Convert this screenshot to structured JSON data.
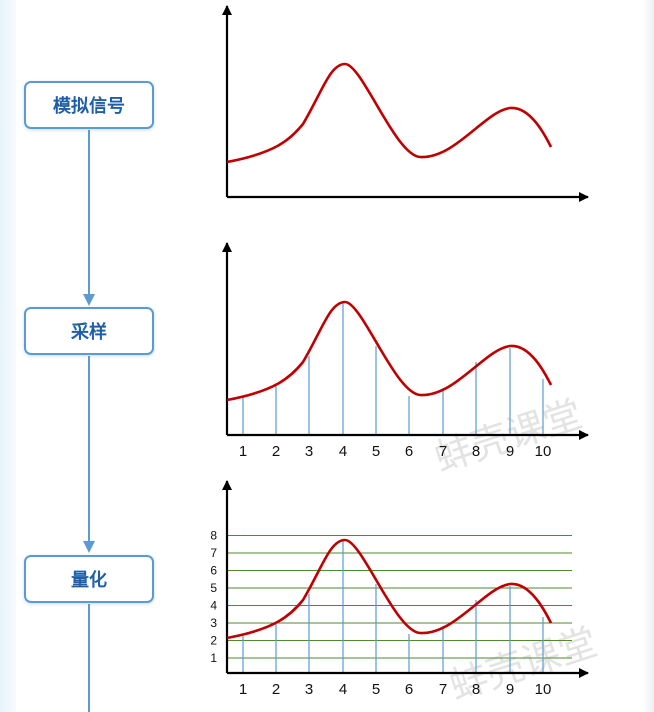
{
  "steps": [
    {
      "label": "模拟信号"
    },
    {
      "label": "采样"
    },
    {
      "label": "量化"
    }
  ],
  "sample_labels": [
    "1",
    "2",
    "3",
    "4",
    "5",
    "6",
    "7",
    "8",
    "9",
    "10"
  ],
  "quant_levels": [
    "1",
    "2",
    "3",
    "4",
    "5",
    "6",
    "7",
    "8"
  ],
  "watermark": "蚌壳课堂",
  "colors": {
    "curve": "#c00000",
    "sample_line": "#5b9bd5",
    "grid_line": "#4f8a2e",
    "box_border": "#5b9bd5",
    "box_text": "#1f5fa8",
    "flow_arrow": "#5b9bd5"
  }
}
